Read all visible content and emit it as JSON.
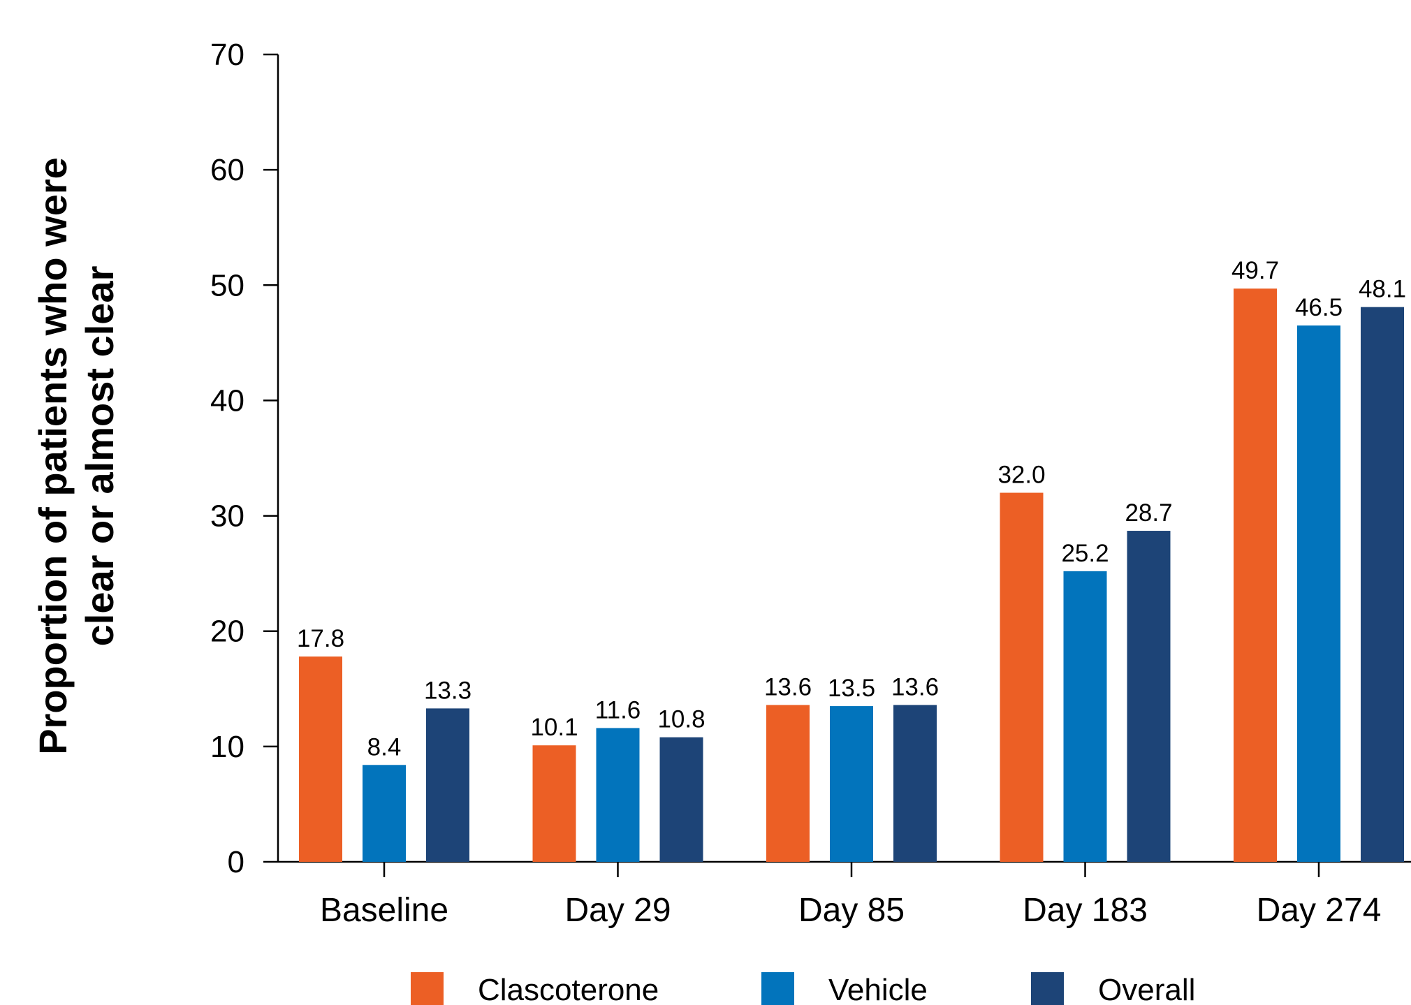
{
  "chart_data": {
    "type": "bar",
    "title": "",
    "xlabel": "",
    "ylabel_lines": [
      "Proportion of patients who were",
      "clear or almost clear"
    ],
    "ylim": [
      0,
      70
    ],
    "yticks": [
      "0",
      "10",
      "20",
      "30",
      "40",
      "50",
      "60",
      "70"
    ],
    "categories": [
      "Baseline",
      "Day 29",
      "Day 85",
      "Day 183",
      "Day 274"
    ],
    "series": [
      {
        "name": "Clascoterone",
        "color": "#EC5F25",
        "values": [
          17.8,
          10.1,
          13.6,
          32.0,
          49.7
        ],
        "labels": [
          "17.8",
          "10.1",
          "13.6",
          "32.0",
          "49.7"
        ]
      },
      {
        "name": "Vehicle",
        "color": "#0274BC",
        "values": [
          8.4,
          11.6,
          13.5,
          25.2,
          46.5
        ],
        "labels": [
          "8.4",
          "11.6",
          "13.5",
          "25.2",
          "46.5"
        ]
      },
      {
        "name": "Overall",
        "color": "#1D4477",
        "values": [
          13.3,
          10.8,
          13.6,
          28.7,
          48.1
        ],
        "labels": [
          "13.3",
          "10.8",
          "13.6",
          "28.7",
          "48.1"
        ]
      }
    ],
    "grid": false,
    "legend_position": "bottom"
  }
}
